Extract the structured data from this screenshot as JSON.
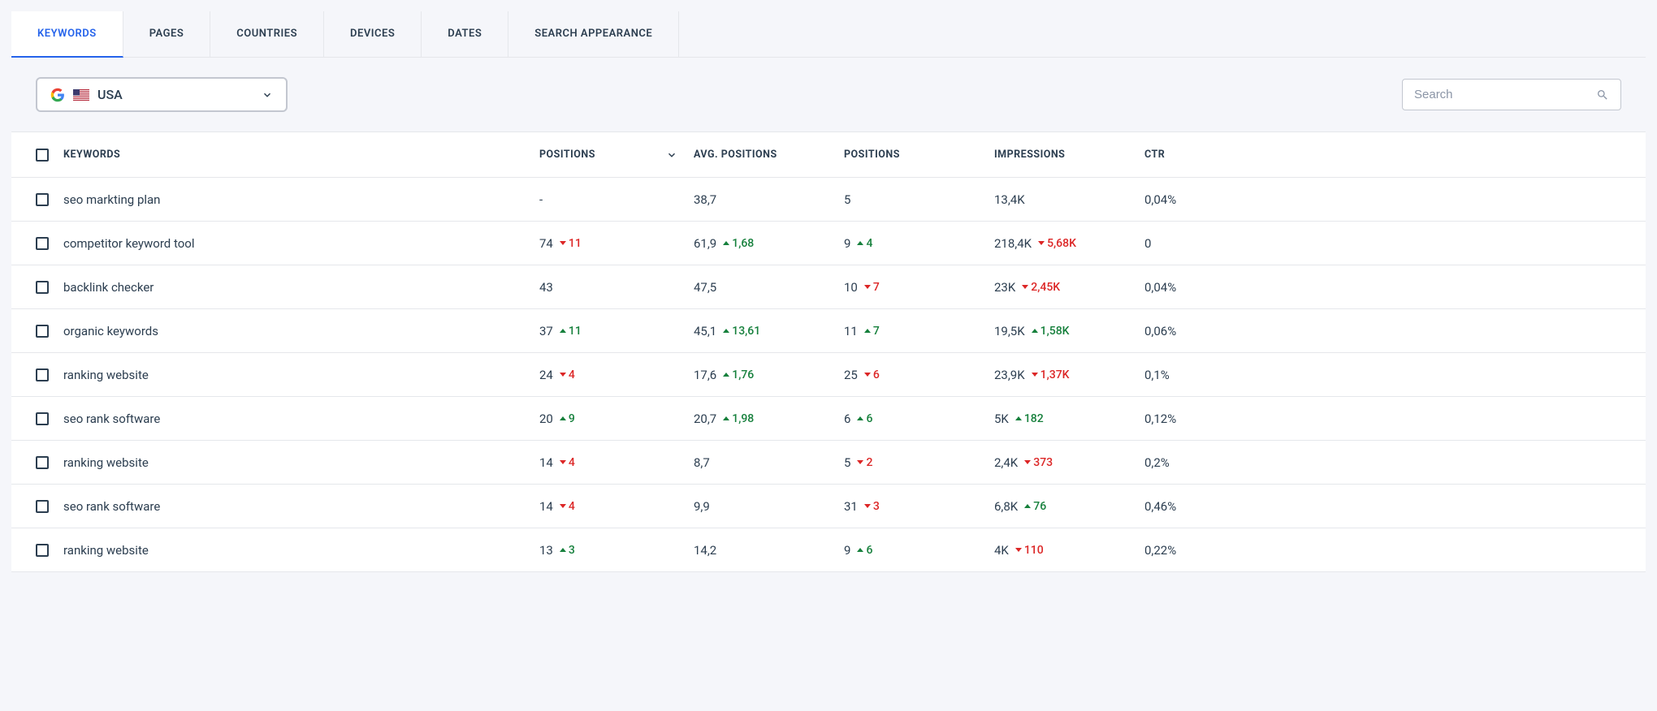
{
  "tabs": [
    {
      "label": "KEYWORDS",
      "active": true
    },
    {
      "label": "PAGES",
      "active": false
    },
    {
      "label": "COUNTRIES",
      "active": false
    },
    {
      "label": "DEVICES",
      "active": false
    },
    {
      "label": "DATES",
      "active": false
    },
    {
      "label": "SEARCH APPEARANCE",
      "active": false
    }
  ],
  "country_selector": {
    "label": "USA"
  },
  "search": {
    "placeholder": "Search"
  },
  "columns": [
    {
      "label": "KEYWORDS"
    },
    {
      "label": "POSITIONS",
      "sortable": true,
      "sort_dir": "down"
    },
    {
      "label": "AVG. POSITIONS"
    },
    {
      "label": "POSITIONS"
    },
    {
      "label": "IMPRESSIONS"
    },
    {
      "label": "CTR"
    }
  ],
  "colors": {
    "up": "#16803c",
    "down": "#dc2626",
    "primary": "#2563eb",
    "text": "#2c3e50",
    "border": "#e5e7eb",
    "bg": "#f5f6fa"
  },
  "rows": [
    {
      "keyword": "seo markting plan",
      "positions": {
        "value": "-"
      },
      "avg_positions": {
        "value": "38,7"
      },
      "positions2": {
        "value": "5"
      },
      "impressions": {
        "value": "13,4K"
      },
      "ctr": "0,04%"
    },
    {
      "keyword": "competitor keyword tool",
      "positions": {
        "value": "74",
        "delta": "11",
        "dir": "down"
      },
      "avg_positions": {
        "value": "61,9",
        "delta": "1,68",
        "dir": "up"
      },
      "positions2": {
        "value": "9",
        "delta": "4",
        "dir": "up"
      },
      "impressions": {
        "value": "218,4K",
        "delta": "5,68K",
        "dir": "down"
      },
      "ctr": "0"
    },
    {
      "keyword": "backlink checker",
      "positions": {
        "value": "43"
      },
      "avg_positions": {
        "value": "47,5"
      },
      "positions2": {
        "value": "10",
        "delta": "7",
        "dir": "down"
      },
      "impressions": {
        "value": "23K",
        "delta": "2,45K",
        "dir": "down"
      },
      "ctr": "0,04%"
    },
    {
      "keyword": "organic keywords",
      "positions": {
        "value": "37",
        "delta": "11",
        "dir": "up"
      },
      "avg_positions": {
        "value": "45,1",
        "delta": "13,61",
        "dir": "up"
      },
      "positions2": {
        "value": "11",
        "delta": "7",
        "dir": "up"
      },
      "impressions": {
        "value": "19,5K",
        "delta": "1,58K",
        "dir": "up"
      },
      "ctr": "0,06%"
    },
    {
      "keyword": "ranking website",
      "positions": {
        "value": "24",
        "delta": "4",
        "dir": "down"
      },
      "avg_positions": {
        "value": "17,6",
        "delta": "1,76",
        "dir": "up"
      },
      "positions2": {
        "value": "25",
        "delta": "6",
        "dir": "down"
      },
      "impressions": {
        "value": "23,9K",
        "delta": "1,37K",
        "dir": "down"
      },
      "ctr": "0,1%"
    },
    {
      "keyword": "seo rank software",
      "positions": {
        "value": "20",
        "delta": "9",
        "dir": "up"
      },
      "avg_positions": {
        "value": "20,7",
        "delta": "1,98",
        "dir": "up"
      },
      "positions2": {
        "value": "6",
        "delta": "6",
        "dir": "up"
      },
      "impressions": {
        "value": "5K",
        "delta": "182",
        "dir": "up"
      },
      "ctr": "0,12%"
    },
    {
      "keyword": "ranking website",
      "positions": {
        "value": "14",
        "delta": "4",
        "dir": "down"
      },
      "avg_positions": {
        "value": "8,7"
      },
      "positions2": {
        "value": "5",
        "delta": "2",
        "dir": "down"
      },
      "impressions": {
        "value": "2,4K",
        "delta": "373",
        "dir": "down"
      },
      "ctr": "0,2%"
    },
    {
      "keyword": "seo rank software",
      "positions": {
        "value": "14",
        "delta": "4",
        "dir": "down"
      },
      "avg_positions": {
        "value": "9,9"
      },
      "positions2": {
        "value": "31",
        "delta": "3",
        "dir": "down"
      },
      "impressions": {
        "value": "6,8K",
        "delta": "76",
        "dir": "up"
      },
      "ctr": "0,46%"
    },
    {
      "keyword": "ranking website",
      "positions": {
        "value": "13",
        "delta": "3",
        "dir": "up"
      },
      "avg_positions": {
        "value": "14,2"
      },
      "positions2": {
        "value": "9",
        "delta": "6",
        "dir": "up"
      },
      "impressions": {
        "value": "4K",
        "delta": "110",
        "dir": "down"
      },
      "ctr": "0,22%"
    }
  ]
}
